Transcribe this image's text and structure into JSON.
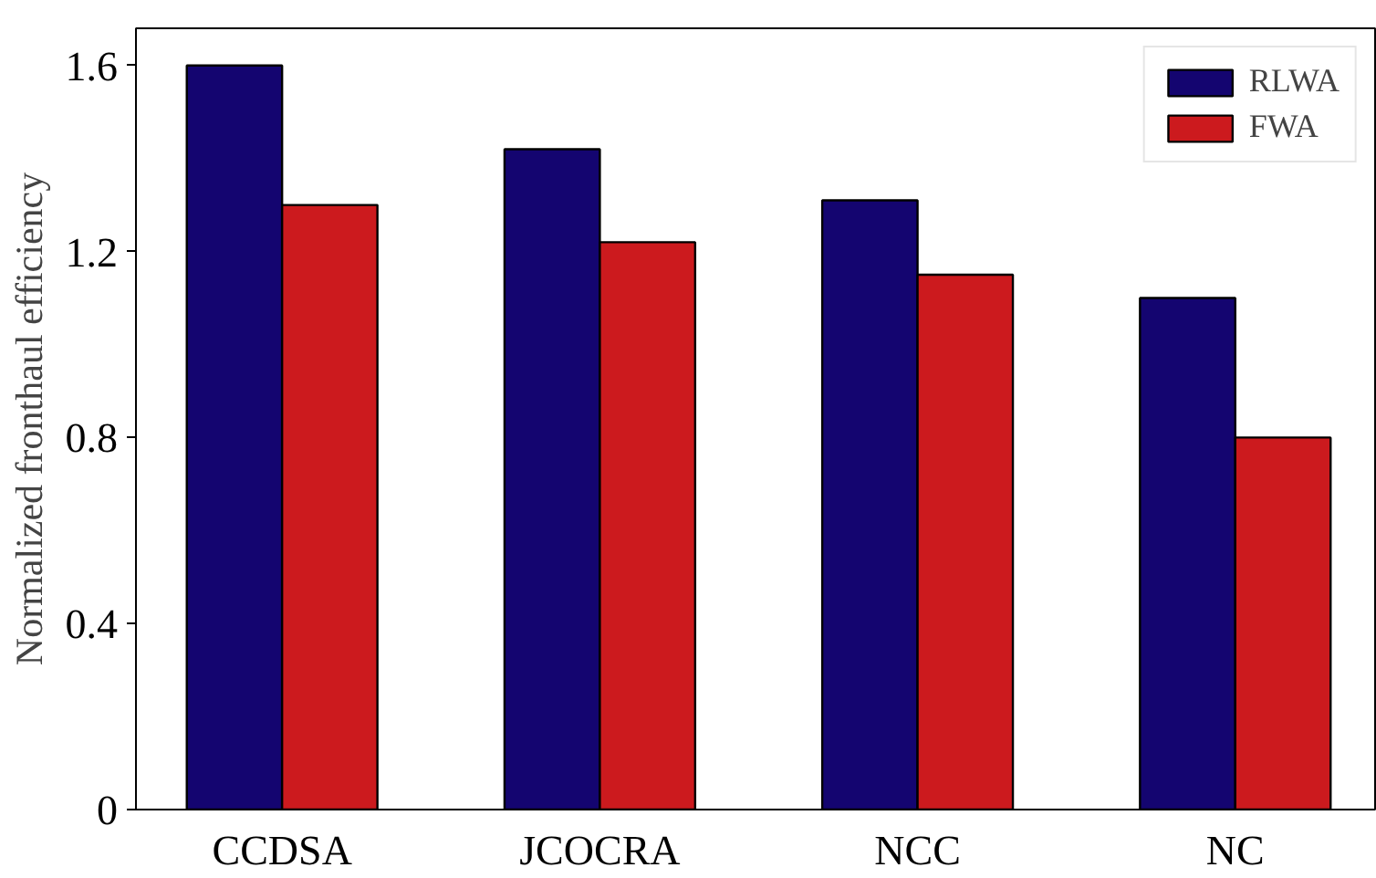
{
  "chart_data": {
    "type": "bar",
    "ylabel": "Normalized fronthaul efficiency",
    "categories": [
      "CCDSA",
      "JCOCRA",
      "NCC",
      "NC"
    ],
    "series": [
      {
        "name": "RLWA",
        "color": "#140570",
        "values": [
          1.6,
          1.42,
          1.31,
          1.1
        ]
      },
      {
        "name": "FWA",
        "color": "#cc1a1e",
        "values": [
          1.3,
          1.22,
          1.15,
          0.8
        ]
      }
    ],
    "ylim": [
      0,
      1.68
    ],
    "yticks": [
      0,
      0.4,
      0.8,
      1.2,
      1.6
    ],
    "legend": "top right",
    "grid": false
  }
}
